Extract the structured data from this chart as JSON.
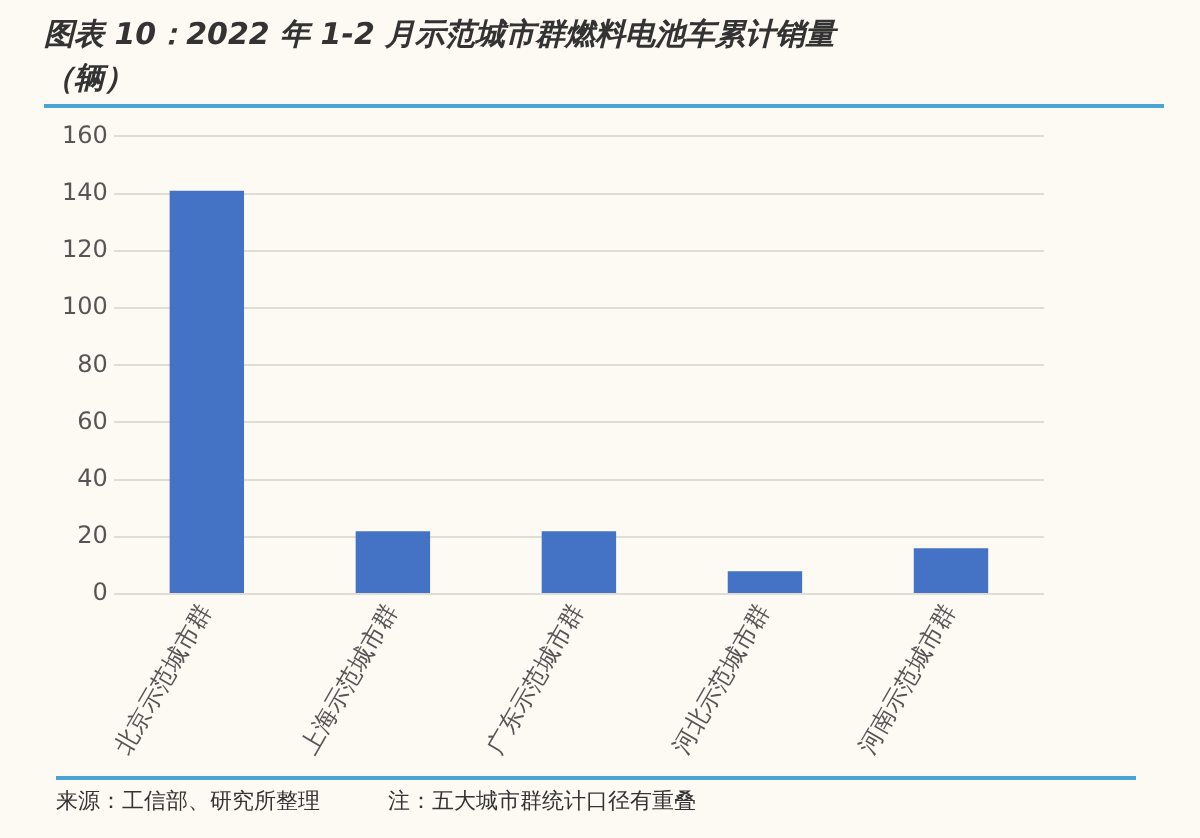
{
  "chart_data": {
    "type": "bar",
    "title": "图表 10：2022 年 1-2 月示范城市群燃料电池车累计销量",
    "subtitle": "（辆）",
    "categories": [
      "北京示范城市群",
      "上海示范城市群",
      "广东示范城市群",
      "河北示范城市群",
      "河南示范城市群"
    ],
    "values": [
      141,
      22,
      22,
      8,
      16
    ],
    "color": "#4472c4",
    "ylim": [
      0,
      160
    ],
    "yticks": [
      0,
      20,
      40,
      60,
      80,
      100,
      120,
      140,
      160
    ],
    "grid": "y",
    "legend": false,
    "annotations": [
      "来源：工信部、研究所整理",
      "注：五大城市群统计口径有重叠"
    ]
  }
}
